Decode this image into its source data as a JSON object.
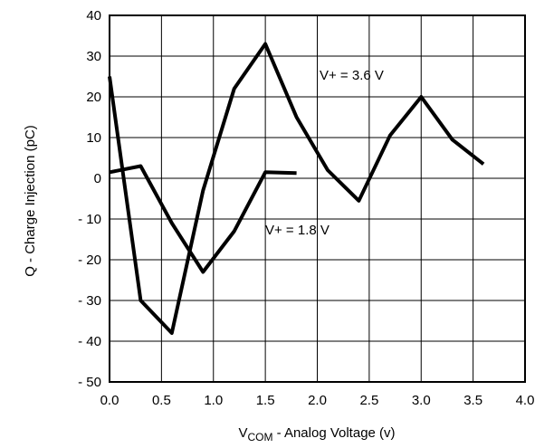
{
  "chart_data": {
    "type": "line",
    "xlabel_main": "V",
    "xlabel_sub": "COM",
    "xlabel_rest": " - Analog Voltage (v)",
    "ylabel": "Q  - Charge Injection (pC)",
    "xlim": [
      0.0,
      4.0
    ],
    "ylim": [
      -50,
      40
    ],
    "xticks": [
      "0.0",
      "0.5",
      "1.0",
      "1.5",
      "2.0",
      "2.5",
      "3.0",
      "3.5",
      "4.0"
    ],
    "yticks": [
      "40",
      "30",
      "20",
      "10",
      "0",
      "- 10",
      "- 20",
      "- 30",
      "- 40",
      "- 50"
    ],
    "grid": true,
    "series": [
      {
        "name": "V+ = 3.6 V",
        "x": [
          0.0,
          0.3,
          0.6,
          0.9,
          1.2,
          1.5,
          1.8,
          2.1,
          2.4,
          2.7,
          3.0,
          3.3,
          3.6
        ],
        "y": [
          25,
          -30,
          -38,
          -3,
          22,
          33,
          15,
          2,
          -5.5,
          10.5,
          20,
          9.5,
          3.5
        ]
      },
      {
        "name": "V+ = 1.8 V",
        "x": [
          0.0,
          0.3,
          0.6,
          0.9,
          1.2,
          1.5,
          1.8
        ],
        "y": [
          1.5,
          3,
          -11,
          -23,
          -13,
          1.5,
          1.3
        ]
      }
    ],
    "colors": {
      "line": "#000000",
      "grid": "#000000",
      "background": "#ffffff"
    }
  }
}
